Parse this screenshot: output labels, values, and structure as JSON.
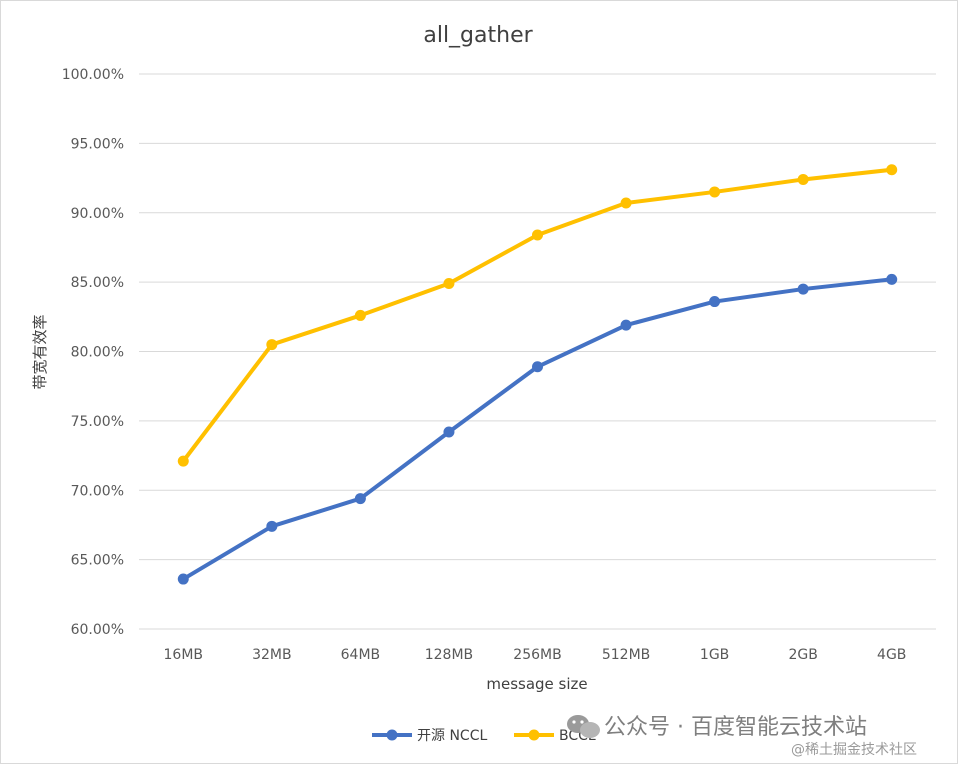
{
  "chart_data": {
    "type": "line",
    "title": "all_gather",
    "xlabel": "message size",
    "ylabel": "带宽有效率",
    "categories": [
      "16MB",
      "32MB",
      "64MB",
      "128MB",
      "256MB",
      "512MB",
      "1GB",
      "2GB",
      "4GB"
    ],
    "ylim": [
      0.6,
      1.0
    ],
    "yticks": [
      "60.00%",
      "65.00%",
      "70.00%",
      "75.00%",
      "80.00%",
      "85.00%",
      "90.00%",
      "95.00%",
      "100.00%"
    ],
    "ytick_values": [
      0.6,
      0.65,
      0.7,
      0.75,
      0.8,
      0.85,
      0.9,
      0.95,
      1.0
    ],
    "grid": "horizontal",
    "legend_position": "bottom",
    "series": [
      {
        "name": "开源 NCCL",
        "color": "#4472C4",
        "values": [
          0.636,
          0.674,
          0.694,
          0.742,
          0.789,
          0.819,
          0.836,
          0.845,
          0.852
        ]
      },
      {
        "name": "BCCL",
        "color": "#FFC000",
        "values": [
          0.721,
          0.805,
          0.826,
          0.849,
          0.884,
          0.907,
          0.915,
          0.924,
          0.931
        ]
      }
    ]
  },
  "watermark": {
    "main": "公众号 · 百度智能云技术站",
    "sub": "@稀土掘金技术社区",
    "icon": "wechat-icon"
  }
}
